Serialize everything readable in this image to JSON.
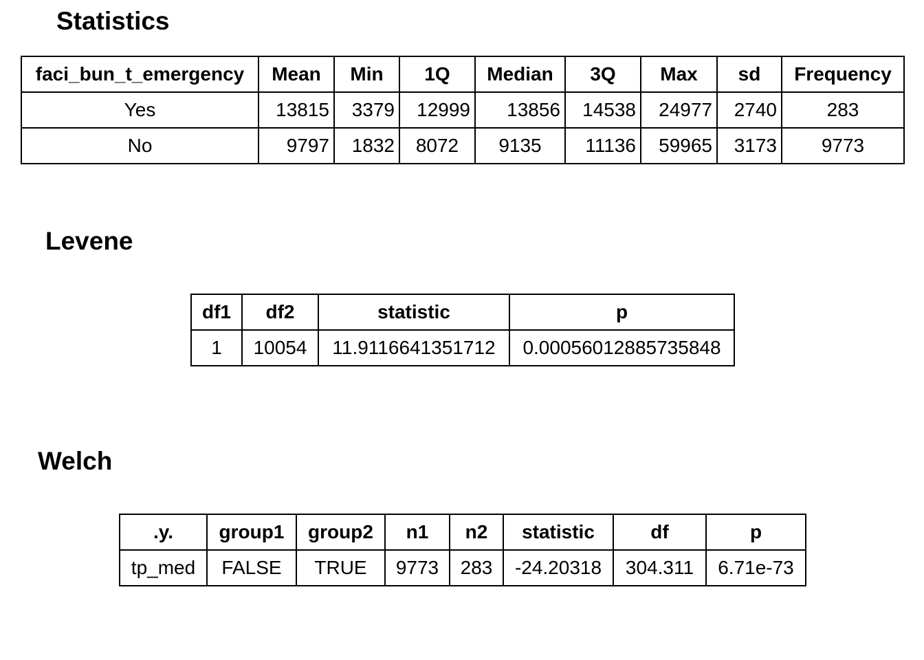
{
  "statistics": {
    "title": "Statistics",
    "headers": [
      "faci_bun_t_emergency",
      "Mean",
      "Min",
      "1Q",
      "Median",
      "3Q",
      "Max",
      "sd",
      "Frequency"
    ],
    "rows": [
      [
        "Yes",
        "13815",
        "3379",
        "12999",
        "13856",
        "14538",
        "24977",
        "2740",
        "283"
      ],
      [
        "No",
        "9797",
        "1832",
        "8072",
        "9135",
        "11136",
        "59965",
        "3173",
        "9773"
      ]
    ]
  },
  "levene": {
    "title": "Levene",
    "headers": [
      "df1",
      "df2",
      "statistic",
      "p"
    ],
    "rows": [
      [
        "1",
        "10054",
        "11.9116641351712",
        "0.00056012885735848"
      ]
    ]
  },
  "welch": {
    "title": "Welch",
    "headers": [
      ".y.",
      "group1",
      "group2",
      "n1",
      "n2",
      "statistic",
      "df",
      "p"
    ],
    "rows": [
      [
        "tp_med",
        "FALSE",
        "TRUE",
        "9773",
        "283",
        "-24.20318",
        "304.311",
        "6.71e-73"
      ]
    ]
  }
}
